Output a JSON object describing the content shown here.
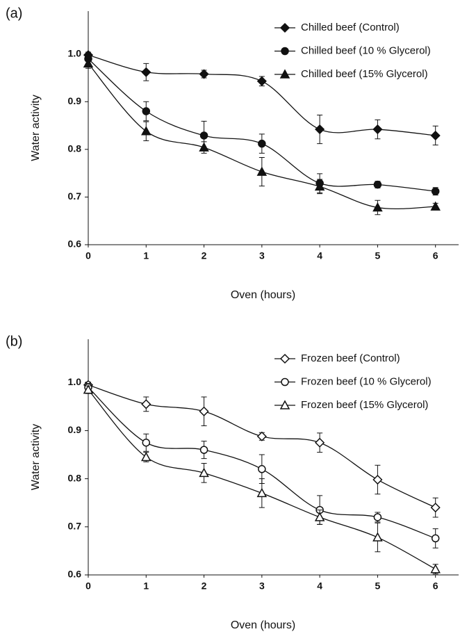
{
  "chart_data": [
    {
      "type": "line",
      "panel_label": "(a)",
      "xlabel": "Oven (hours)",
      "ylabel": "Water activity",
      "x": [
        0,
        1,
        2,
        3,
        4,
        5,
        6
      ],
      "xlim": [
        0,
        6.4
      ],
      "xticks": [
        0,
        1,
        2,
        3,
        4,
        5,
        6
      ],
      "ylim": [
        0.6,
        1.09
      ],
      "yticks": [
        0.6,
        0.7,
        0.8,
        0.9,
        {
          "value": 1,
          "label": "1.0"
        }
      ],
      "series": [
        {
          "name": "Chilled beef (Control)",
          "color": "#111111",
          "marker": "diamond",
          "filled": true,
          "values": [
            0.998,
            0.962,
            0.958,
            0.943,
            0.842,
            0.842,
            0.829
          ],
          "errors": [
            0.006,
            0.018,
            0.008,
            0.01,
            0.03,
            0.02,
            0.02
          ]
        },
        {
          "name": "Chilled beef (10 % Glycerol)",
          "color": "#111111",
          "marker": "circle",
          "filled": true,
          "values": [
            0.99,
            0.88,
            0.829,
            0.812,
            0.729,
            0.726,
            0.712
          ],
          "errors": [
            0.01,
            0.02,
            0.03,
            0.02,
            0.02,
            0.007,
            0.008
          ]
        },
        {
          "name": "Chilled beef (15% Glycerol)",
          "color": "#111111",
          "marker": "triangle",
          "filled": true,
          "values": [
            0.98,
            0.838,
            0.804,
            0.753,
            0.722,
            0.678,
            0.68
          ],
          "errors": [
            0.01,
            0.02,
            0.012,
            0.03,
            0.015,
            0.015,
            0.007
          ]
        }
      ]
    },
    {
      "type": "line",
      "panel_label": "(b)",
      "xlabel": "Oven (hours)",
      "ylabel": "Water activity",
      "x": [
        0,
        1,
        2,
        3,
        4,
        5,
        6
      ],
      "xlim": [
        0,
        6.4
      ],
      "xticks": [
        0,
        1,
        2,
        3,
        4,
        5,
        6
      ],
      "ylim": [
        0.6,
        1.09
      ],
      "yticks": [
        0.6,
        0.7,
        0.8,
        0.9,
        {
          "value": 1,
          "label": "1.0"
        }
      ],
      "series": [
        {
          "name": "Frozen beef (Control)",
          "color": "#111111",
          "marker": "diamond",
          "filled": false,
          "values": [
            0.995,
            0.955,
            0.94,
            0.888,
            0.875,
            0.798,
            0.74
          ],
          "errors": [
            0.006,
            0.015,
            0.03,
            0.008,
            0.02,
            0.03,
            0.02
          ]
        },
        {
          "name": "Frozen beef (10 % Glycerol)",
          "color": "#111111",
          "marker": "circle",
          "filled": false,
          "values": [
            0.99,
            0.875,
            0.86,
            0.82,
            0.735,
            0.72,
            0.676
          ],
          "errors": [
            0.008,
            0.018,
            0.018,
            0.03,
            0.03,
            0.01,
            0.02
          ]
        },
        {
          "name": "Frozen beef (15% Glycerol)",
          "color": "#111111",
          "marker": "triangle",
          "filled": false,
          "values": [
            0.985,
            0.845,
            0.812,
            0.77,
            0.72,
            0.678,
            0.612
          ],
          "errors": [
            0.008,
            0.01,
            0.02,
            0.03,
            0.015,
            0.03,
            0.01
          ]
        }
      ]
    }
  ]
}
